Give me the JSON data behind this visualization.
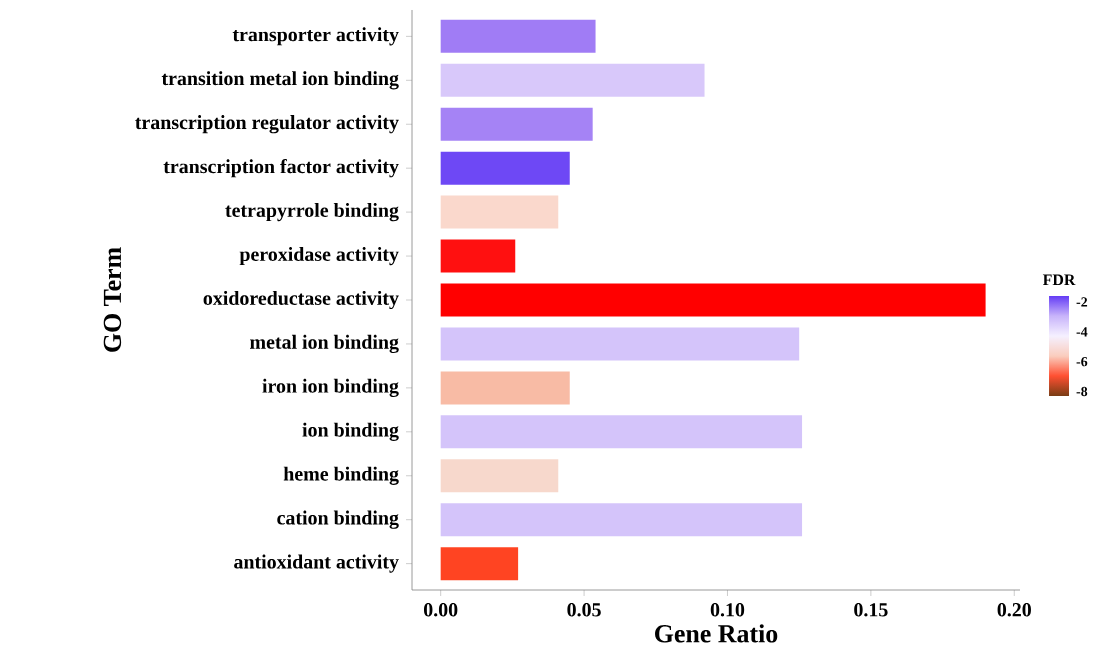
{
  "chart_data": {
    "type": "bar",
    "orientation": "horizontal",
    "categories": [
      "transporter activity",
      "transition metal ion binding",
      "transcription regulator activity",
      "transcription factor activity",
      "tetrapyrrole binding",
      "peroxidase activity",
      "oxidoreductase activity",
      "metal ion binding",
      "iron ion binding",
      "ion binding",
      "heme binding",
      "cation binding",
      "antioxidant activity"
    ],
    "values": [
      0.054,
      0.092,
      0.053,
      0.045,
      0.041,
      0.026,
      0.19,
      0.125,
      0.045,
      0.126,
      0.041,
      0.126,
      0.027
    ],
    "colors": [
      "#a07cf5",
      "#d8c8fa",
      "#a583f5",
      "#6e48f5",
      "#fad8cc",
      "#ff1010",
      "#ff0000",
      "#d4c4fa",
      "#f8bba5",
      "#d4c4fa",
      "#f7d8cc",
      "#d4c4fa",
      "#ff4422"
    ],
    "xlim": [
      -0.01,
      0.202
    ],
    "xticks": [
      {
        "value": 0,
        "label": "0.00"
      },
      {
        "value": 0.05,
        "label": "0.05"
      },
      {
        "value": 0.1,
        "label": "0.10"
      },
      {
        "value": 0.15,
        "label": "0.15"
      },
      {
        "value": 0.2,
        "label": "0.20"
      }
    ],
    "xlabel": "Gene Ratio",
    "ylabel": "GO Term",
    "clabel": "FDR",
    "clim": [
      -8.3,
      -1.6
    ],
    "cticks": [
      -2,
      -4,
      -6,
      -8
    ]
  }
}
